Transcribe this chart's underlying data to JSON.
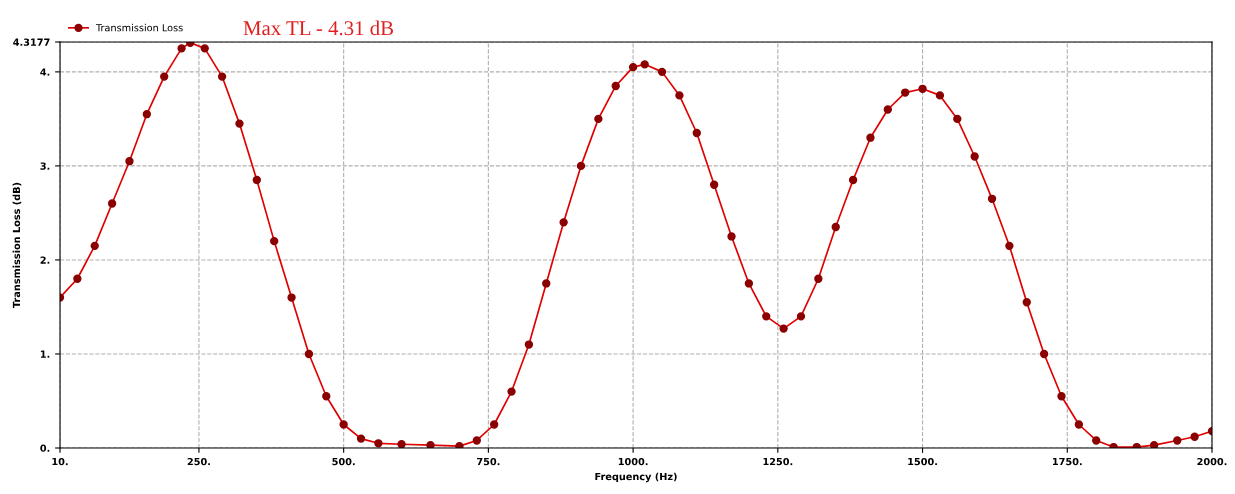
{
  "chart_data": {
    "type": "line",
    "xlabel": "Frequency (Hz)",
    "ylabel": "Transmission Loss (dB)",
    "annotations": [
      "Max TL - 4.31 dB"
    ],
    "x": [
      10,
      40,
      70,
      100,
      130,
      160,
      190,
      220,
      235,
      260,
      290,
      320,
      350,
      380,
      410,
      440,
      470,
      500,
      530,
      560,
      600,
      650,
      700,
      730,
      760,
      790,
      820,
      850,
      880,
      910,
      940,
      970,
      1000,
      1020,
      1050,
      1080,
      1110,
      1140,
      1170,
      1200,
      1230,
      1260,
      1290,
      1320,
      1350,
      1380,
      1410,
      1440,
      1470,
      1500,
      1530,
      1560,
      1590,
      1620,
      1650,
      1680,
      1710,
      1740,
      1770,
      1800,
      1830,
      1870,
      1900,
      1940,
      1970,
      2000
    ],
    "series": [
      {
        "name": "Transmission Loss",
        "color": "#e00000",
        "values": [
          1.6,
          1.8,
          2.15,
          2.6,
          3.05,
          3.55,
          3.95,
          4.25,
          4.31,
          4.25,
          3.95,
          3.45,
          2.85,
          2.2,
          1.6,
          1.0,
          0.55,
          0.25,
          0.1,
          0.05,
          0.04,
          0.03,
          0.02,
          0.08,
          0.25,
          0.6,
          1.1,
          1.75,
          2.4,
          3.0,
          3.5,
          3.85,
          4.05,
          4.08,
          4.0,
          3.75,
          3.35,
          2.8,
          2.25,
          1.75,
          1.4,
          1.27,
          1.4,
          1.8,
          2.35,
          2.85,
          3.3,
          3.6,
          3.78,
          3.82,
          3.75,
          3.5,
          3.1,
          2.65,
          2.15,
          1.55,
          1.0,
          0.55,
          0.25,
          0.08,
          0.01,
          0.01,
          0.03,
          0.08,
          0.12,
          0.18
        ]
      }
    ],
    "xlim": [
      10,
      2000
    ],
    "ylim": [
      0,
      4.3177
    ],
    "xticks": [
      {
        "value": 10,
        "label": "10."
      },
      {
        "value": 250,
        "label": "250."
      },
      {
        "value": 500,
        "label": "500."
      },
      {
        "value": 750,
        "label": "750."
      },
      {
        "value": 1000,
        "label": "1000."
      },
      {
        "value": 1250,
        "label": "1250."
      },
      {
        "value": 1500,
        "label": "1500."
      },
      {
        "value": 1750,
        "label": "1750."
      },
      {
        "value": 2000,
        "label": "2000."
      }
    ],
    "yticks": [
      {
        "value": 0,
        "label": "0."
      },
      {
        "value": 1,
        "label": "1."
      },
      {
        "value": 2,
        "label": "2."
      },
      {
        "value": 3,
        "label": "3."
      },
      {
        "value": 4,
        "label": "4."
      },
      4.3177
    ],
    "grid": true,
    "legend": "top left",
    "marker": "circle",
    "line_style": "solid"
  }
}
